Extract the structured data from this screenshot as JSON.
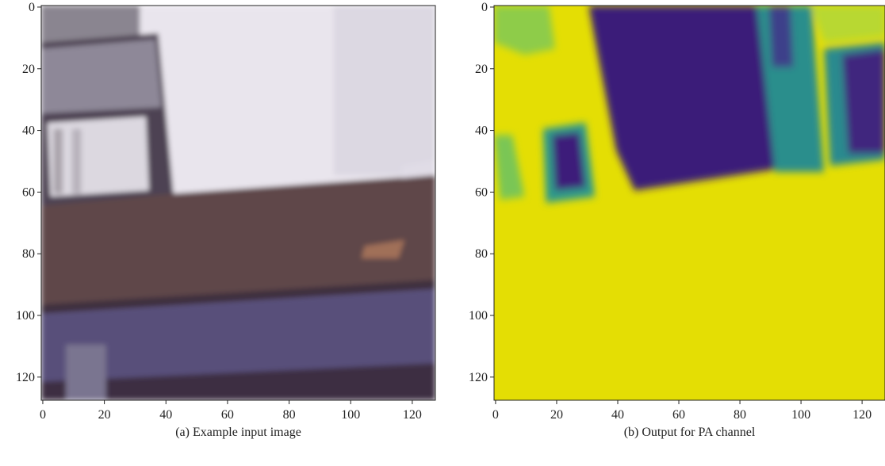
{
  "panels": [
    {
      "caption": "(a) Example input image",
      "xlim": [
        -0.5,
        127.5
      ],
      "ylim": [
        127.5,
        -0.5
      ],
      "xticks": [
        0,
        20,
        40,
        60,
        80,
        100,
        120
      ],
      "yticks": [
        0,
        20,
        40,
        60,
        80,
        100,
        120
      ]
    },
    {
      "caption": "(b) Output for PA channel",
      "xlim": [
        -0.5,
        127.5
      ],
      "ylim": [
        127.5,
        -0.5
      ],
      "xticks": [
        0,
        20,
        40,
        60,
        80,
        100,
        120
      ],
      "yticks": [
        0,
        20,
        40,
        60,
        80,
        100,
        120
      ]
    }
  ]
}
